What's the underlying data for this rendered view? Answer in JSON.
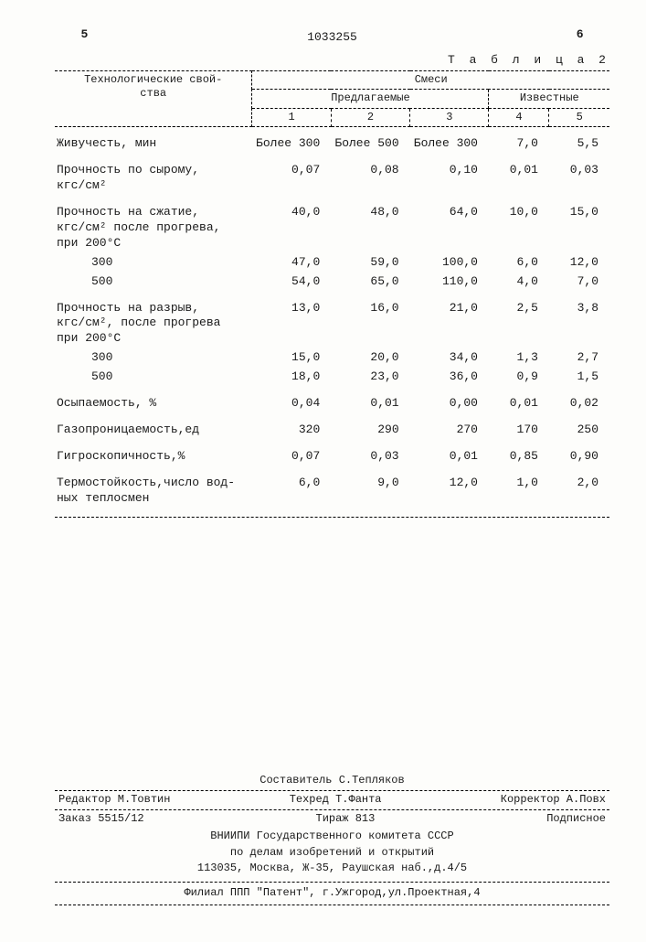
{
  "page": {
    "left_num": "5",
    "right_num": "6",
    "doc_num": "1033255",
    "table_caption": "Т а б л и ц а  2"
  },
  "table": {
    "header": {
      "prop_col": "Технологические свой-\nства",
      "super_col": "Смеси",
      "group1": "Предлагаемые",
      "group2": "Известные",
      "cols": [
        "1",
        "2",
        "3",
        "4",
        "5"
      ]
    },
    "rows": [
      {
        "label": "Живучесть, мин",
        "vals": [
          "Более 300",
          "Более 500",
          "Более 300",
          "7,0",
          "5,5"
        ],
        "gap": true
      },
      {
        "label": "Прочность по сырому,\nкгс/см²",
        "vals": [
          "0,07",
          "0,08",
          "0,10",
          "0,01",
          "0,03"
        ],
        "gap": true
      },
      {
        "label": "Прочность на сжатие,\nкгс/см² после прогрева,\nпри 200°С",
        "vals": [
          "40,0",
          "48,0",
          "64,0",
          "10,0",
          "15,0"
        ],
        "gap": true
      },
      {
        "label": "300",
        "vals": [
          "47,0",
          "59,0",
          "100,0",
          "6,0",
          "12,0"
        ],
        "indent": true
      },
      {
        "label": "500",
        "vals": [
          "54,0",
          "65,0",
          "110,0",
          "4,0",
          "7,0"
        ],
        "indent": true
      },
      {
        "label": "Прочность на разрыв,\nкгс/см², после прогрева\nпри 200°С",
        "vals": [
          "13,0",
          "16,0",
          "21,0",
          "2,5",
          "3,8"
        ],
        "gap": true
      },
      {
        "label": "300",
        "vals": [
          "15,0",
          "20,0",
          "34,0",
          "1,3",
          "2,7"
        ],
        "indent": true
      },
      {
        "label": "500",
        "vals": [
          "18,0",
          "23,0",
          "36,0",
          "0,9",
          "1,5"
        ],
        "indent": true
      },
      {
        "label": "Осыпаемость, %",
        "vals": [
          "0,04",
          "0,01",
          "0,00",
          "0,01",
          "0,02"
        ],
        "gap": true
      },
      {
        "label": "Газопроницаемость,ед",
        "vals": [
          "320",
          "290",
          "270",
          "170",
          "250"
        ],
        "gap": true
      },
      {
        "label": "Гигроскопичность,%",
        "vals": [
          "0,07",
          "0,03",
          "0,01",
          "0,85",
          "0,90"
        ],
        "gap": true
      },
      {
        "label": "Термостойкость,число вод-\nных теплосмен",
        "vals": [
          "6,0",
          "9,0",
          "12,0",
          "1,0",
          "2,0"
        ],
        "gap": true
      }
    ]
  },
  "footer": {
    "compiler": "Составитель С.Тепляков",
    "editor": "Редактор М.Товтин",
    "techred": "Техред Т.Фанта",
    "corrector": "Корректор А.Повх",
    "order": "Заказ 5515/12",
    "tirazh": "Тираж 813",
    "subscribe": "Подписное",
    "org1": "ВНИИПИ Государственного комитета СССР",
    "org2": "по делам изобретений и открытий",
    "addr1": "113035, Москва, Ж-35, Раушская наб.,д.4/5",
    "addr2": "Филиал ППП \"Патент\", г.Ужгород,ул.Проектная,4"
  }
}
